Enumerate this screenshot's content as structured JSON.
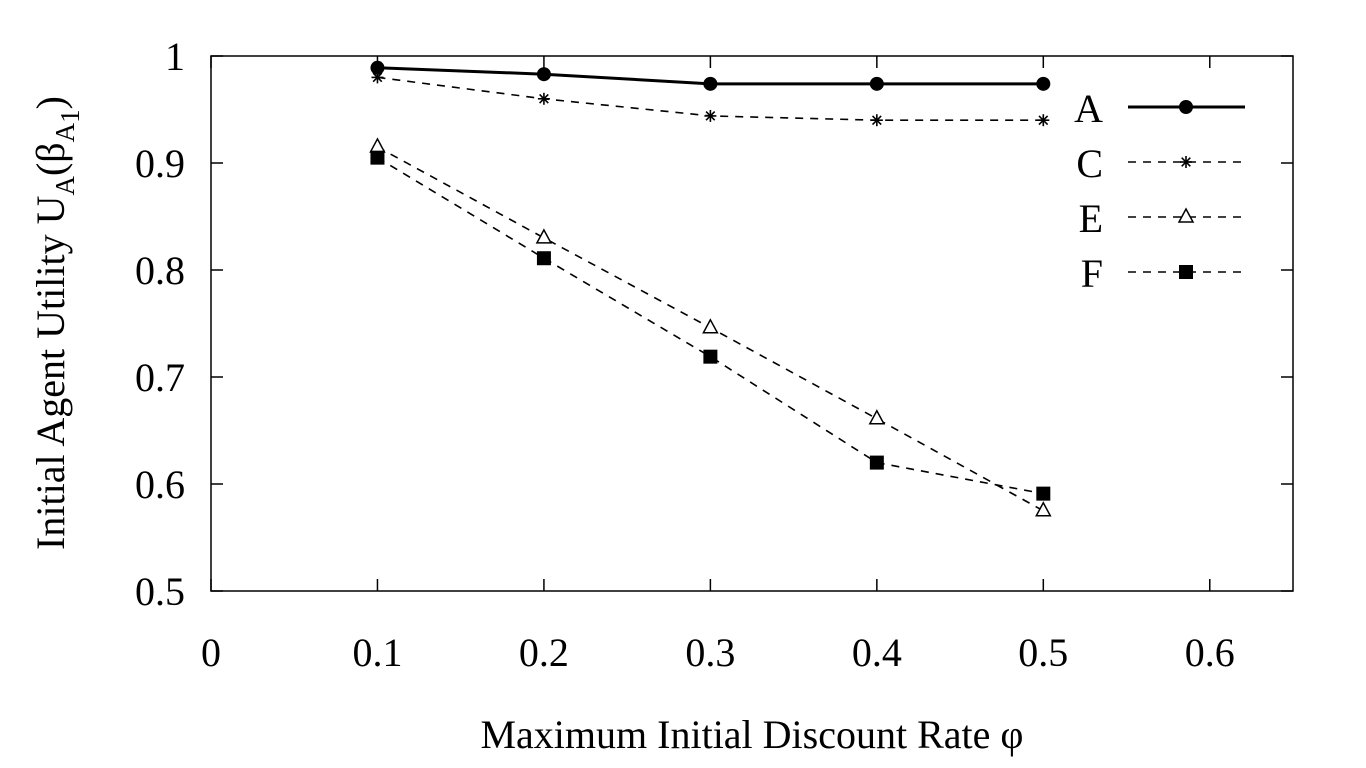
{
  "chart_data": {
    "type": "line",
    "title": "",
    "xlabel": "Maximum Initial Discount Rate φ",
    "ylabel": {
      "main": "Initial Agent Utility U",
      "sub_u": "A",
      "paren_open": "(β",
      "sub_beta": "A",
      "sub_beta_sub": "1",
      "paren_close": ")"
    },
    "xlim": [
      0,
      0.65
    ],
    "ylim": [
      0.5,
      1.0
    ],
    "xticks": [
      0,
      0.1,
      0.2,
      0.3,
      0.4,
      0.5,
      0.6
    ],
    "xtick_labels": [
      "0",
      "0.1",
      "0.2",
      "0.3",
      "0.4",
      "0.5",
      "0.6"
    ],
    "yticks": [
      0.5,
      0.6,
      0.7,
      0.8,
      0.9,
      1.0
    ],
    "ytick_labels": [
      "0.5",
      "0.6",
      "0.7",
      "0.8",
      "0.9",
      "1"
    ],
    "grid": false,
    "legend_position": "top-right",
    "x": [
      0.1,
      0.2,
      0.3,
      0.4,
      0.5
    ],
    "series": [
      {
        "name": "A",
        "marker": "filled-circle",
        "line": "solid",
        "values": [
          0.989,
          0.983,
          0.974,
          0.974,
          0.974
        ]
      },
      {
        "name": "C",
        "marker": "asterisk",
        "line": "dashed",
        "values": [
          0.98,
          0.96,
          0.944,
          0.94,
          0.94
        ]
      },
      {
        "name": "E",
        "marker": "open-triangle",
        "line": "dashed",
        "values": [
          0.915,
          0.83,
          0.746,
          0.661,
          0.575
        ]
      },
      {
        "name": "F",
        "marker": "filled-square",
        "line": "dashed",
        "values": [
          0.905,
          0.811,
          0.719,
          0.62,
          0.591
        ]
      }
    ]
  }
}
